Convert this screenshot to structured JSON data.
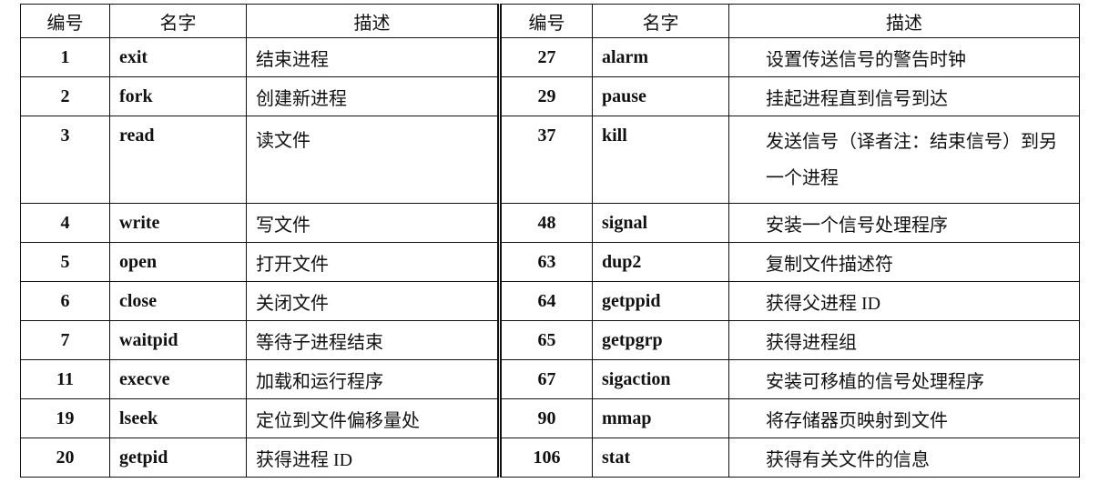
{
  "headers": [
    "编号",
    "名字",
    "描述",
    "编号",
    "名字",
    "描述"
  ],
  "rows": [
    {
      "left": {
        "num": "1",
        "name": "exit",
        "desc": "结束进程"
      },
      "right": {
        "num": "27",
        "name": "alarm",
        "desc": "设置传送信号的警告时钟"
      }
    },
    {
      "left": {
        "num": "2",
        "name": "fork",
        "desc": "创建新进程"
      },
      "right": {
        "num": "29",
        "name": "pause",
        "desc": "挂起进程直到信号到达"
      }
    },
    {
      "left": {
        "num": "3",
        "name": "read",
        "desc": "读文件"
      },
      "right": {
        "num": "37",
        "name": "kill",
        "desc": "发送信号（译者注：结束信号）到另一个进程"
      }
    },
    {
      "left": {
        "num": "4",
        "name": "write",
        "desc": "写文件"
      },
      "right": {
        "num": "48",
        "name": "signal",
        "desc": "安装一个信号处理程序"
      }
    },
    {
      "left": {
        "num": "5",
        "name": "open",
        "desc": "打开文件"
      },
      "right": {
        "num": "63",
        "name": "dup2",
        "desc": "复制文件描述符"
      }
    },
    {
      "left": {
        "num": "6",
        "name": "close",
        "desc": "关闭文件"
      },
      "right": {
        "num": "64",
        "name": "getppid",
        "desc": "获得父进程 ID"
      }
    },
    {
      "left": {
        "num": "7",
        "name": "waitpid",
        "desc": "等待子进程结束"
      },
      "right": {
        "num": "65",
        "name": "getpgrp",
        "desc": "获得进程组"
      }
    },
    {
      "left": {
        "num": "11",
        "name": "execve",
        "desc": "加载和运行程序"
      },
      "right": {
        "num": "67",
        "name": "sigaction",
        "desc": "安装可移植的信号处理程序"
      }
    },
    {
      "left": {
        "num": "19",
        "name": "lseek",
        "desc": "定位到文件偏移量处"
      },
      "right": {
        "num": "90",
        "name": "mmap",
        "desc": "将存储器页映射到文件"
      }
    },
    {
      "left": {
        "num": "20",
        "name": "getpid",
        "desc": "获得进程 ID"
      },
      "right": {
        "num": "106",
        "name": "stat",
        "desc": "获得有关文件的信息"
      }
    }
  ]
}
